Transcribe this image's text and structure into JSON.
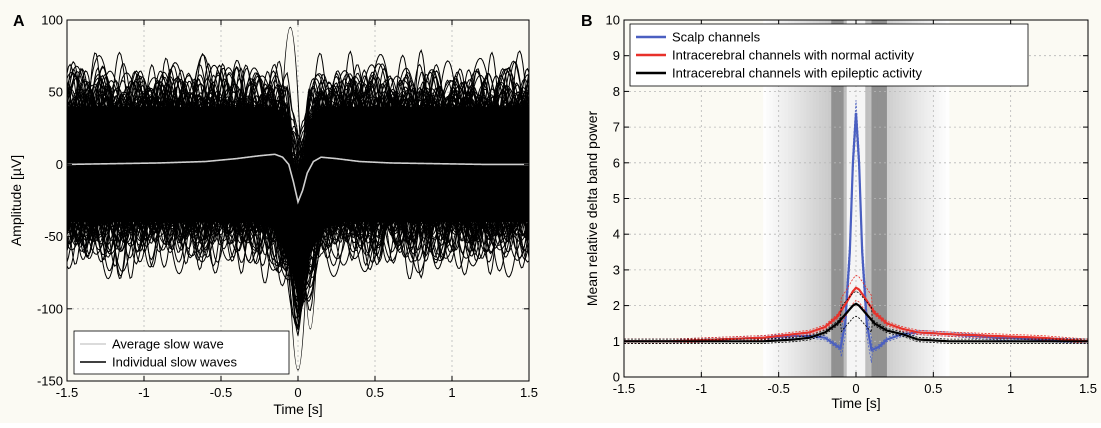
{
  "chart_data": [
    {
      "panel": "A",
      "type": "line",
      "xlabel": "Time [s]",
      "ylabel": "Amplitude [µV]",
      "xlim": [
        -1.5,
        1.5
      ],
      "ylim": [
        -150,
        100
      ],
      "xticks": [
        -1.5,
        -1,
        -0.5,
        0,
        0.5,
        1,
        1.5
      ],
      "xtick_labels": [
        "-1.5",
        "-1",
        "-0.5",
        "0",
        "0.5",
        "1",
        "1.5"
      ],
      "yticks": [
        -150,
        -100,
        -50,
        0,
        50,
        100
      ],
      "ytick_labels": [
        "-150",
        "-100",
        "-50",
        "0",
        "50",
        "100"
      ],
      "grid": true,
      "legend_position": "bottom-left",
      "series": [
        {
          "name": "Average slow wave",
          "color": "#cfcfcf",
          "x": [
            -1.5,
            -1.2,
            -0.9,
            -0.6,
            -0.4,
            -0.25,
            -0.15,
            -0.1,
            -0.06,
            -0.03,
            0,
            0.03,
            0.06,
            0.1,
            0.15,
            0.25,
            0.4,
            0.6,
            0.9,
            1.2,
            1.5
          ],
          "y": [
            0,
            0.5,
            1,
            2,
            4,
            6,
            7,
            5,
            0,
            -12,
            -26,
            -18,
            -6,
            2,
            5,
            4,
            2,
            1,
            0.5,
            0,
            0
          ]
        },
        {
          "name": "Individual slow waves",
          "color": "#000000",
          "envelope_upper": {
            "x": [
              -1.5,
              -0.3,
              -0.15,
              -0.07,
              -0.04,
              0,
              0.04,
              0.07,
              0.15,
              0.3,
              1.5
            ],
            "y": [
              40,
              40,
              40,
              30,
              5,
              -5,
              5,
              30,
              40,
              40,
              40
            ]
          },
          "envelope_lower": {
            "x": [
              -1.5,
              -0.3,
              -0.15,
              -0.05,
              0,
              0.05,
              0.15,
              0.3,
              1.5
            ],
            "y": [
              -40,
              -40,
              -45,
              -70,
              -90,
              -70,
              -45,
              -40,
              -40
            ]
          },
          "outlier_extremes": {
            "max": 100,
            "min": -150
          }
        }
      ]
    },
    {
      "panel": "B",
      "type": "line",
      "xlabel": "Time [s]",
      "ylabel": "Mean relative delta band power",
      "xlim": [
        -1.5,
        1.5
      ],
      "ylim": [
        0,
        10
      ],
      "xticks": [
        -1.5,
        -1,
        -0.5,
        0,
        0.5,
        1,
        1.5
      ],
      "xtick_labels": [
        "-1.5",
        "-1",
        "-0.5",
        "0",
        "0.5",
        "1",
        "1.5"
      ],
      "yticks": [
        0,
        1,
        2,
        3,
        4,
        5,
        6,
        7,
        8,
        9,
        10
      ],
      "ytick_labels": [
        "0",
        "1",
        "2",
        "3",
        "4",
        "5",
        "6",
        "7",
        "8",
        "9",
        "10"
      ],
      "grid": true,
      "legend_position": "top-left",
      "shaded_region": {
        "x_range": [
          -0.6,
          0.6
        ],
        "dark_bands": [
          [
            -0.15,
            -0.08
          ],
          [
            0.1,
            0.2
          ]
        ],
        "center_band": [
          -0.05,
          0.05
        ]
      },
      "series": [
        {
          "name": "Scalp channels",
          "color": "#4a5fc1",
          "x": [
            -1.5,
            -1.2,
            -0.9,
            -0.6,
            -0.4,
            -0.3,
            -0.2,
            -0.15,
            -0.1,
            -0.07,
            -0.04,
            -0.02,
            0,
            0.02,
            0.04,
            0.07,
            0.1,
            0.15,
            0.2,
            0.3,
            0.4,
            0.6,
            0.9,
            1.2,
            1.5
          ],
          "y": [
            1.0,
            1.0,
            1.05,
            1.1,
            1.15,
            1.15,
            1.1,
            0.95,
            0.8,
            1.5,
            3.5,
            6.0,
            7.4,
            6.0,
            3.5,
            1.5,
            0.75,
            0.85,
            1.05,
            1.2,
            1.25,
            1.2,
            1.1,
            1.05,
            1.0
          ],
          "ci_upper_peak": 7.9,
          "ci_lower_peak": 7.0
        },
        {
          "name": "Intracerebral channels with normal activity",
          "color": "#e8312a",
          "x": [
            -1.5,
            -1.2,
            -0.9,
            -0.6,
            -0.4,
            -0.3,
            -0.2,
            -0.12,
            -0.06,
            -0.02,
            0,
            0.02,
            0.06,
            0.12,
            0.2,
            0.3,
            0.4,
            0.6,
            0.9,
            1.2,
            1.5
          ],
          "y": [
            1.0,
            1.0,
            1.05,
            1.1,
            1.2,
            1.25,
            1.4,
            1.7,
            2.1,
            2.4,
            2.5,
            2.45,
            2.2,
            1.8,
            1.5,
            1.35,
            1.25,
            1.2,
            1.15,
            1.1,
            1.0
          ]
        },
        {
          "name": "Intracerebral channels with epileptic activity",
          "color": "#000000",
          "x": [
            -1.5,
            -1.2,
            -0.9,
            -0.6,
            -0.4,
            -0.3,
            -0.2,
            -0.12,
            -0.06,
            -0.02,
            0,
            0.02,
            0.06,
            0.12,
            0.2,
            0.3,
            0.4,
            0.6,
            0.9,
            1.2,
            1.5
          ],
          "y": [
            1.0,
            1.0,
            1.0,
            1.0,
            1.05,
            1.1,
            1.25,
            1.5,
            1.8,
            2.0,
            2.05,
            2.0,
            1.8,
            1.5,
            1.3,
            1.2,
            1.05,
            1.0,
            1.0,
            1.0,
            1.0
          ]
        }
      ]
    }
  ]
}
